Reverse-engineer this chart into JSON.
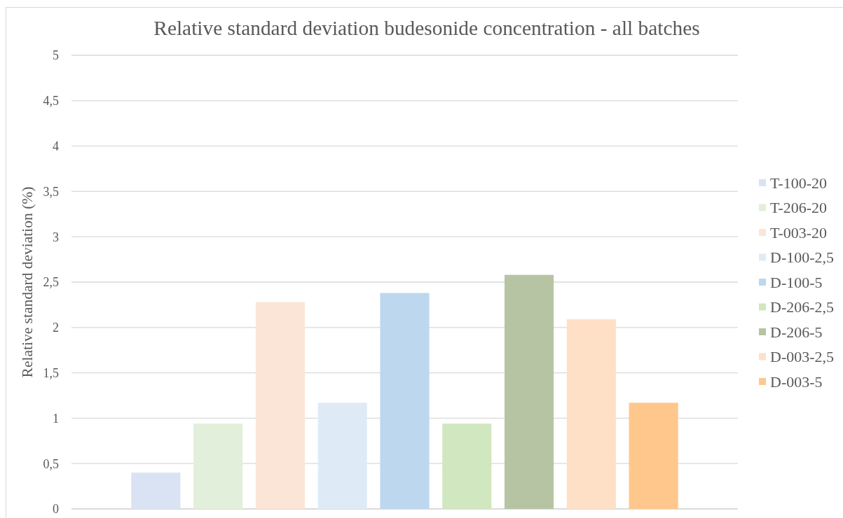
{
  "chart_data": {
    "type": "bar",
    "title": "Relative standard deviation budesonide concentration - all batches",
    "ylabel": "Relative standard deviation (%)",
    "categories": [
      null
    ],
    "series": [
      {
        "name": "T-100-20",
        "color": "#dae3f3",
        "values": [
          0.4
        ]
      },
      {
        "name": "T-206-20",
        "color": "#e2efda",
        "values": [
          0.94
        ]
      },
      {
        "name": "T-003-20",
        "color": "#fbe5d6",
        "values": [
          2.28
        ]
      },
      {
        "name": "D-100-2,5",
        "color": "#deebf7",
        "values": [
          1.17
        ]
      },
      {
        "name": "D-100-5",
        "color": "#bdd7ee",
        "values": [
          2.38
        ]
      },
      {
        "name": "D-206-2,5",
        "color": "#d0e7c0",
        "values": [
          0.94
        ]
      },
      {
        "name": "D-206-5",
        "color": "#b7c4a4",
        "values": [
          2.58
        ]
      },
      {
        "name": "D-003-2,5",
        "color": "#fee0c6",
        "values": [
          2.09
        ]
      },
      {
        "name": "D-003-5",
        "color": "#ffc78b",
        "values": [
          1.17
        ]
      }
    ],
    "ylim": [
      0,
      5
    ],
    "yticks": [
      0,
      {
        "value": 0.5,
        "label": "0,5"
      },
      1,
      {
        "value": 1.5,
        "label": "1,5"
      },
      2,
      {
        "value": 2.5,
        "label": "2,5"
      },
      3,
      {
        "value": 3.5,
        "label": "3,5"
      },
      4,
      {
        "value": 4.5,
        "label": "4,5"
      },
      5
    ],
    "grid": "y",
    "legend": "right"
  }
}
